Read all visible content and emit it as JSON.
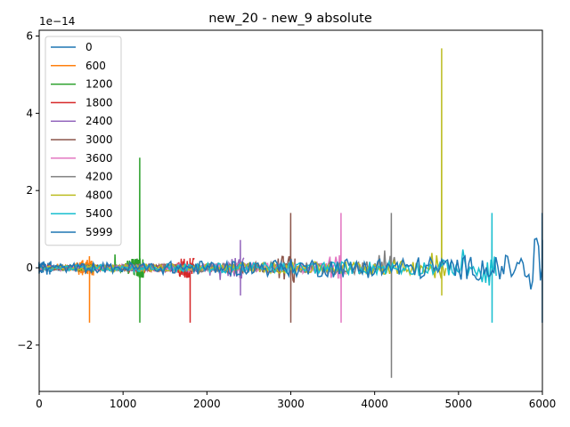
{
  "chart_data": {
    "type": "line",
    "title": "new_20 - new_9 absolute",
    "xlabel": "",
    "ylabel": "",
    "y_offset_label": "1e−14",
    "xlim": [
      0,
      6000
    ],
    "ylim": [
      -3.2,
      6.15
    ],
    "y_scale_exponent": -14,
    "x_ticks": [
      0,
      1000,
      2000,
      3000,
      4000,
      5000,
      6000
    ],
    "y_ticks": [
      -2,
      0,
      2,
      4,
      6
    ],
    "y_tick_labels": [
      "−2",
      "0",
      "2",
      "4",
      "6"
    ],
    "grid": false,
    "legend_placement": "upper-left",
    "series": [
      {
        "name": "0",
        "color": "#1f77b4",
        "spike_x": 0,
        "spike_up": 0.15,
        "spike_down": -0.15,
        "noise": 0.08,
        "x_end": 300
      },
      {
        "name": "600",
        "color": "#ff7f0e",
        "spike_x": 600,
        "spike_up": 0.3,
        "spike_down": -1.42,
        "noise": 0.1,
        "x_end": 650
      },
      {
        "name": "1200",
        "color": "#2ca02c",
        "spike_x": 1200,
        "spike_up": 2.85,
        "spike_down": -1.42,
        "noise": 0.12,
        "x_end": 1250
      },
      {
        "name": "1800",
        "color": "#d62728",
        "spike_x": 1800,
        "spike_up": 0.25,
        "spike_down": -1.42,
        "noise": 0.12,
        "x_end": 1850
      },
      {
        "name": "2400",
        "color": "#9467bd",
        "spike_x": 2400,
        "spike_up": 0.72,
        "spike_down": -0.72,
        "noise": 0.13,
        "x_end": 2450
      },
      {
        "name": "3000",
        "color": "#8c564b",
        "spike_x": 3000,
        "spike_up": 1.42,
        "spike_down": -1.42,
        "noise": 0.15,
        "x_end": 3050
      },
      {
        "name": "3600",
        "color": "#e377c2",
        "spike_x": 3600,
        "spike_up": 1.42,
        "spike_down": -1.42,
        "noise": 0.15,
        "x_end": 3650
      },
      {
        "name": "4200",
        "color": "#7f7f7f",
        "spike_x": 4200,
        "spike_up": 1.42,
        "spike_down": -2.85,
        "noise": 0.18,
        "x_end": 4250
      },
      {
        "name": "4800",
        "color": "#bcbd22",
        "spike_x": 4800,
        "spike_up": 5.68,
        "spike_down": -0.72,
        "noise": 0.2,
        "x_end": 4850
      },
      {
        "name": "5400",
        "color": "#17becf",
        "spike_x": 5400,
        "spike_up": 1.42,
        "spike_down": -1.42,
        "noise": 0.22,
        "x_end": 5450
      },
      {
        "name": "5999",
        "color": "#1f77b4",
        "spike_x": 5999,
        "spike_up": 1.42,
        "spike_down": -1.42,
        "noise": 0.35,
        "x_end": 6000
      }
    ]
  }
}
